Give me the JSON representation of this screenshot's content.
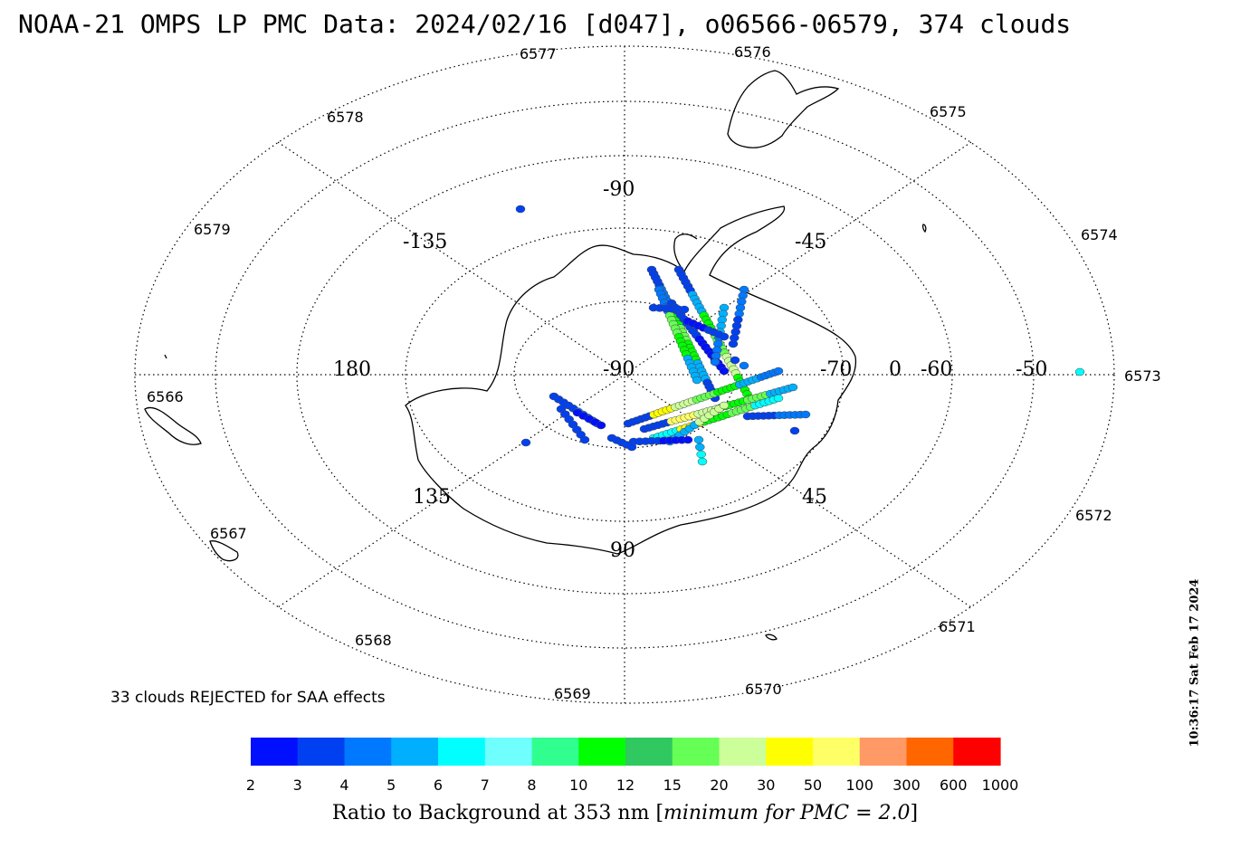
{
  "title": "NOAA-21 OMPS LP PMC Data: 2024/02/16 [d047], o06566-06579, 374 clouds",
  "rejected_note": "33 clouds REJECTED for SAA effects",
  "timestamp": "10:36:17 Sat Feb 17 2024",
  "colorbar": {
    "caption_main": "Ratio to Background at 353 nm ",
    "caption_open": "[",
    "caption_italic": "minimum for PMC = 2.0",
    "caption_close": "]",
    "ticks": [
      "2",
      "3",
      "4",
      "5",
      "6",
      "7",
      "8",
      "10",
      "12",
      "15",
      "20",
      "30",
      "50",
      "100",
      "300",
      "600",
      "1000"
    ],
    "colors": [
      "#0010ff",
      "#0040f0",
      "#0078ff",
      "#00b0ff",
      "#00ffff",
      "#70ffff",
      "#30ff90",
      "#00ff00",
      "#30c860",
      "#66ff55",
      "#ccff99",
      "#ffff00",
      "#ffff66",
      "#ff9966",
      "#ff6600",
      "#ff0000"
    ]
  },
  "map_labels": {
    "lon_labels": [
      "-90",
      "-135",
      "-45",
      "180",
      "-90",
      "135",
      "45",
      "90"
    ],
    "lat_labels": [
      "-70",
      "0",
      "-60",
      "-50"
    ],
    "orbit_labels": [
      "6577",
      "6576",
      "6578",
      "6575",
      "6579",
      "6574",
      "6573",
      "6566",
      "6572",
      "6567",
      "6571",
      "6568",
      "6569",
      "6570"
    ]
  }
}
